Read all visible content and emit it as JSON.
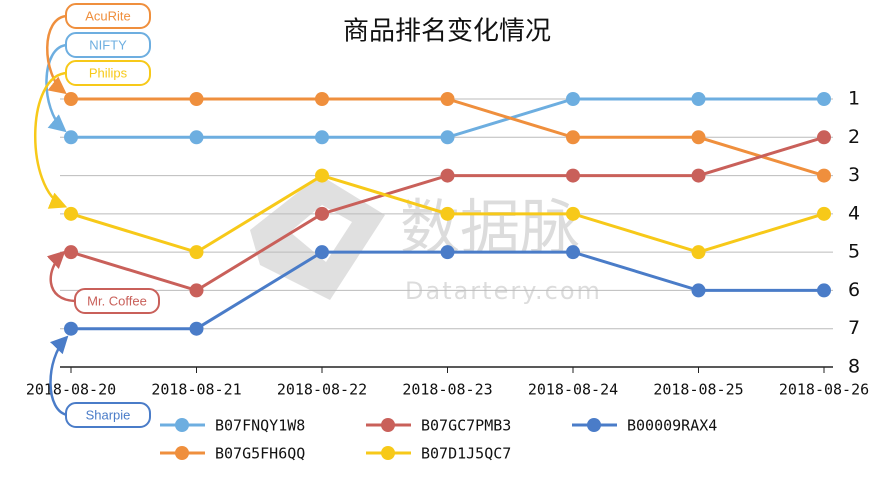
{
  "chart_data": {
    "type": "line",
    "title": "商品排名变化情况",
    "categories": [
      "2018-08-20",
      "2018-08-21",
      "2018-08-22",
      "2018-08-23",
      "2018-08-24",
      "2018-08-25",
      "2018-08-26"
    ],
    "ylim": [
      8,
      1
    ],
    "yticks": [
      1,
      2,
      3,
      4,
      5,
      6,
      7,
      8
    ],
    "grid": true,
    "y_axis_side": "right",
    "watermark": {
      "text": "数据脉",
      "url": "Datartery.com"
    },
    "series": [
      {
        "name": "B07FNQY1W8",
        "color": "#6daee0",
        "values": [
          2,
          2,
          2,
          2,
          1,
          1,
          1
        ],
        "annotation": "NIFTY"
      },
      {
        "name": "B07G5FH6QQ",
        "color": "#ef8f3d",
        "values": [
          1,
          1,
          1,
          1,
          2,
          2,
          3
        ],
        "annotation": "AcuRite"
      },
      {
        "name": "B07GC7PMB3",
        "color": "#c9605a",
        "values": [
          5,
          6,
          4,
          3,
          3,
          3,
          2
        ],
        "annotation": "Mr. Coffee"
      },
      {
        "name": "B07D1J5QC7",
        "color": "#f7c919",
        "values": [
          4,
          5,
          3,
          4,
          4,
          5,
          4
        ],
        "annotation": "Philips"
      },
      {
        "name": "B00009RAX4",
        "color": "#4a7cc8",
        "values": [
          7,
          7,
          5,
          5,
          5,
          6,
          6
        ],
        "annotation": "Sharpie"
      }
    ]
  }
}
